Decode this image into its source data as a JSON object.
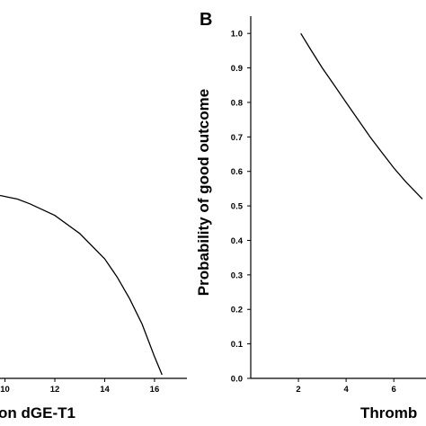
{
  "chart_data": [
    {
      "type": "line",
      "panel": "A",
      "xlabel": "on dGE-T1",
      "ylabel": "",
      "x_ticks": [
        10,
        12,
        14,
        16
      ],
      "xlim": [
        9.8,
        17.3
      ],
      "ylim": [
        0,
        1.0
      ],
      "grid": false,
      "series": [
        {
          "x": [
            9.8,
            10.5,
            11,
            12,
            13,
            14,
            14.5,
            15,
            15.5,
            16,
            16.3
          ],
          "y": [
            0.505,
            0.495,
            0.482,
            0.45,
            0.4,
            0.33,
            0.28,
            0.22,
            0.15,
            0.06,
            0.01
          ]
        }
      ]
    },
    {
      "type": "line",
      "panel": "B",
      "panel_label": "B",
      "xlabel": "Thromb",
      "ylabel": "Probability of good outcome",
      "x_ticks": [
        2,
        4,
        6
      ],
      "y_ticks": [
        "0.0",
        "0.1",
        "0.2",
        "0.3",
        "0.4",
        "0.5",
        "0.6",
        "0.7",
        "0.8",
        "0.9",
        "1.0"
      ],
      "xlim": [
        0,
        7.35
      ],
      "ylim": [
        0,
        1.05
      ],
      "grid": false,
      "series": [
        {
          "x": [
            2.1,
            2.5,
            3,
            3.5,
            4,
            4.5,
            5,
            5.5,
            6,
            6.5,
            7.2
          ],
          "y": [
            1.0,
            0.955,
            0.9,
            0.85,
            0.8,
            0.75,
            0.7,
            0.655,
            0.61,
            0.57,
            0.52
          ]
        }
      ]
    }
  ]
}
